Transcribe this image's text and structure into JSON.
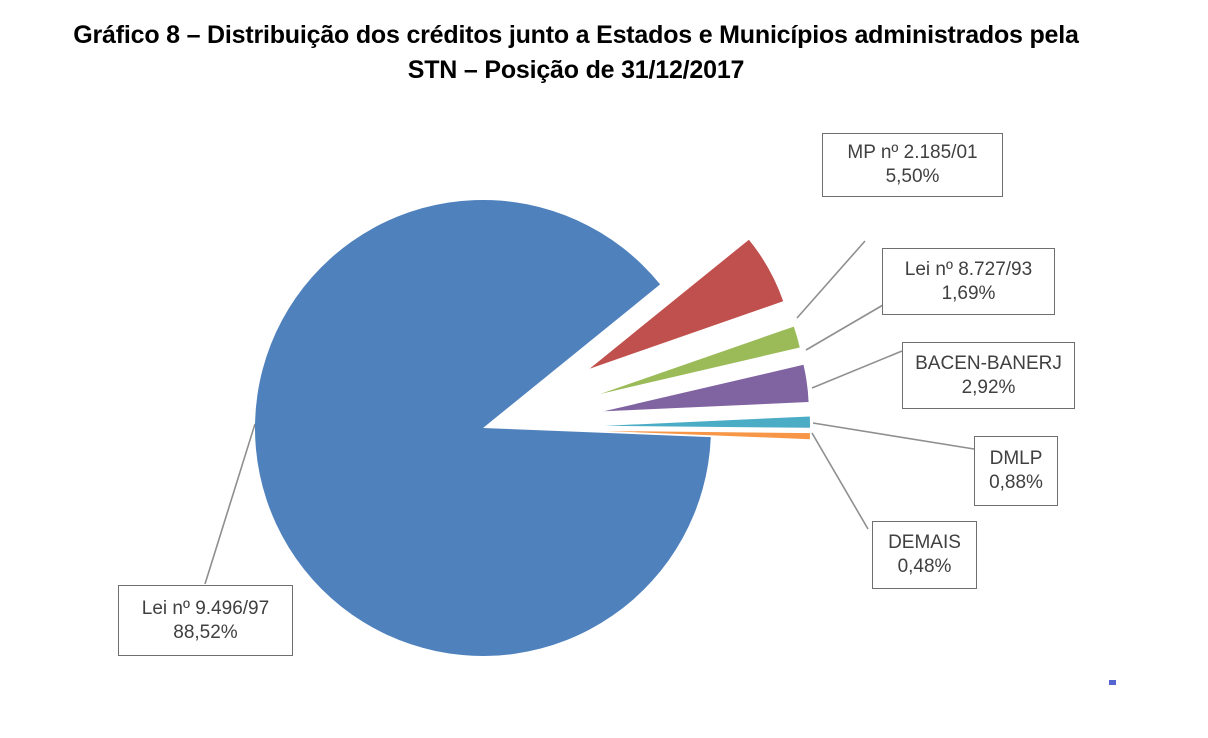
{
  "title": {
    "line1": "Gráfico 8 – Distribuição dos créditos junto a Estados e Municípios administrados pela",
    "line2": "STN – Posição de 31/12/2017"
  },
  "chart_data": {
    "type": "pie",
    "title": "Gráfico 8 – Distribuição dos créditos junto a Estados e Municípios administrados pela STN – Posição de 31/12/2017",
    "legend_position": "none",
    "label_style": "callout boxes with gray leader lines, name + percent",
    "value_unit": "%",
    "value_format": "comma decimal",
    "rotation_deg": 39,
    "slices": [
      {
        "label": "MP nº 2.185/01",
        "value": 5.5,
        "display_value": "5,50%",
        "color": "#C0504D",
        "exploded": true
      },
      {
        "label": "Lei nº 8.727/93",
        "value": 1.69,
        "display_value": "1,69%",
        "color": "#9BBB59",
        "exploded": true
      },
      {
        "label": "BACEN-BANERJ",
        "value": 2.92,
        "display_value": "2,92%",
        "color": "#8064A2",
        "exploded": true
      },
      {
        "label": "DMLP",
        "value": 0.88,
        "display_value": "0,88%",
        "color": "#4BACC6",
        "exploded": true
      },
      {
        "label": "DEMAIS",
        "value": 0.48,
        "display_value": "0,48%",
        "color": "#F79646",
        "exploded": true
      },
      {
        "label": "Lei nº 9.496/97",
        "value": 88.52,
        "display_value": "88,52%",
        "color": "#4F81BD",
        "exploded": false
      }
    ],
    "colors": {
      "leader_line": "#8f8f8f",
      "callout_border": "#6f6f6f",
      "callout_text": "#404040",
      "title_text": "#000000",
      "background": "#ffffff"
    }
  }
}
